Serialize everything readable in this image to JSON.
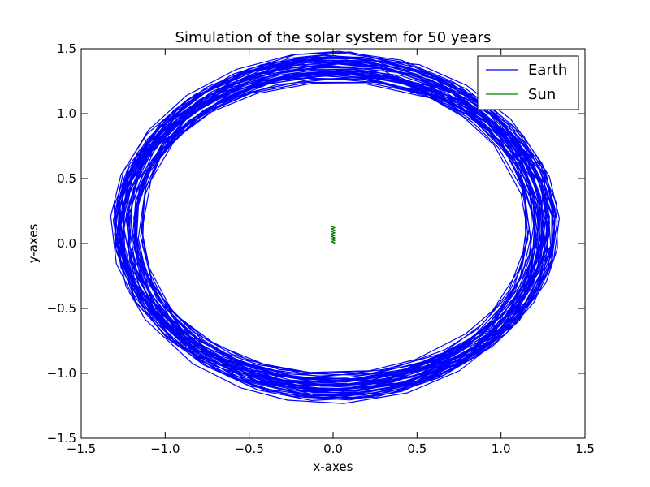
{
  "chart_data": {
    "type": "line",
    "title": "Simulation of the solar system for 50 years",
    "xlabel": "x-axes",
    "ylabel": "y-axes",
    "xlim": [
      -1.5,
      1.5
    ],
    "ylim": [
      -1.5,
      1.5
    ],
    "xticks": [
      -1.5,
      -1.0,
      -0.5,
      0.0,
      0.5,
      1.0,
      1.5
    ],
    "xtick_labels": [
      "−1.5",
      "−1.0",
      "−0.5",
      "0.0",
      "0.5",
      "1.0",
      "1.5"
    ],
    "yticks": [
      -1.5,
      -1.0,
      -0.5,
      0.0,
      0.5,
      1.0,
      1.5
    ],
    "ytick_labels": [
      "−1.5",
      "−1.0",
      "−0.5",
      "0.0",
      "0.5",
      "1.0",
      "1.5"
    ],
    "grid": false,
    "legend_position": "top-right",
    "orbit_count": 50,
    "series": [
      {
        "name": "Earth",
        "color": "#0000ff",
        "orbit_center_range": {
          "x": [
            -0.02,
            0.04
          ],
          "y": [
            0.09,
            0.16
          ]
        },
        "orbit_semi_axis_x_range": [
          1.16,
          1.33
        ],
        "orbit_semi_axis_y_range": [
          1.14,
          1.34
        ],
        "points": [
          [
            0.0,
            1.45
          ],
          [
            0.55,
            1.35
          ],
          [
            0.95,
            1.05
          ],
          [
            1.25,
            0.6
          ],
          [
            1.33,
            0.1
          ],
          [
            1.25,
            -0.4
          ],
          [
            1.0,
            -0.8
          ],
          [
            0.6,
            -1.08
          ],
          [
            0.0,
            -1.2
          ],
          [
            -0.55,
            -1.1
          ],
          [
            -0.95,
            -0.8
          ],
          [
            -1.25,
            -0.35
          ],
          [
            -1.32,
            0.1
          ],
          [
            -1.2,
            0.6
          ],
          [
            -0.9,
            1.05
          ],
          [
            -0.5,
            1.32
          ],
          [
            0.0,
            1.45
          ]
        ]
      },
      {
        "name": "Sun",
        "color": "#008000",
        "x_range": [
          -0.01,
          0.01
        ],
        "y_range": [
          0.0,
          0.13
        ],
        "points": [
          [
            0.0,
            0.0
          ],
          [
            0.01,
            0.02
          ],
          [
            -0.01,
            0.04
          ],
          [
            0.01,
            0.06
          ],
          [
            -0.01,
            0.08
          ],
          [
            0.01,
            0.1
          ],
          [
            -0.01,
            0.12
          ],
          [
            0.0,
            0.13
          ]
        ]
      }
    ]
  }
}
